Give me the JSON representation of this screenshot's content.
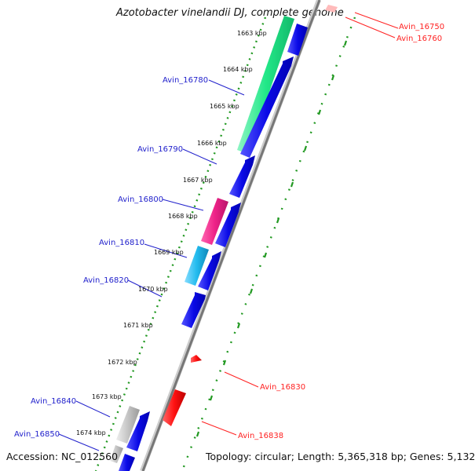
{
  "title": "Azotobacter vinelandii DJ, complete genome",
  "accession": "Accession: NC_012560",
  "topology": "Topology: circular; Length: 5,365,318 bp; Genes: 5,132",
  "ticks": [
    {
      "kbp": 1663,
      "label": "1663 kbp"
    },
    {
      "kbp": 1664,
      "label": "1664 kbp"
    },
    {
      "kbp": 1665,
      "label": "1665 kbp"
    },
    {
      "kbp": 1666,
      "label": "1666 kbp"
    },
    {
      "kbp": 1667,
      "label": "1667 kbp"
    },
    {
      "kbp": 1668,
      "label": "1668 kbp"
    },
    {
      "kbp": 1669,
      "label": "1669 kbp"
    },
    {
      "kbp": 1670,
      "label": "1670 kbp"
    },
    {
      "kbp": 1671,
      "label": "1671 kbp"
    },
    {
      "kbp": 1672,
      "label": "1672 kbp"
    },
    {
      "kbp": 1673,
      "label": "1673 kbp"
    },
    {
      "kbp": 1674,
      "label": "1674 kbp"
    }
  ],
  "genes_outer": [
    {
      "name": "Avin_16750",
      "color": "#ff2222"
    },
    {
      "name": "Avin_16760",
      "color": "#ff2222"
    },
    {
      "name": "Avin_16830",
      "color": "#ff2222"
    },
    {
      "name": "Avin_16838",
      "color": "#ff2222"
    }
  ],
  "genes_inner": [
    {
      "name": "Avin_16780",
      "color": "#2222cc"
    },
    {
      "name": "Avin_16790",
      "color": "#2222cc"
    },
    {
      "name": "Avin_16800",
      "color": "#2222cc"
    },
    {
      "name": "Avin_16810",
      "color": "#2222cc"
    },
    {
      "name": "Avin_16820",
      "color": "#2222cc"
    },
    {
      "name": "Avin_16840",
      "color": "#2222cc"
    },
    {
      "name": "Avin_16850",
      "color": "#2222cc"
    }
  ],
  "colors": {
    "backbone": "#888888",
    "cds_forward": "#0a0ae6",
    "cds_reverse": "#ff1111",
    "feature_green": "#22e888",
    "feature_magenta": "#ee2288",
    "feature_cyan": "#22bbee",
    "feature_grey": "#bbbbbb",
    "dotted_ring": "#229922"
  }
}
